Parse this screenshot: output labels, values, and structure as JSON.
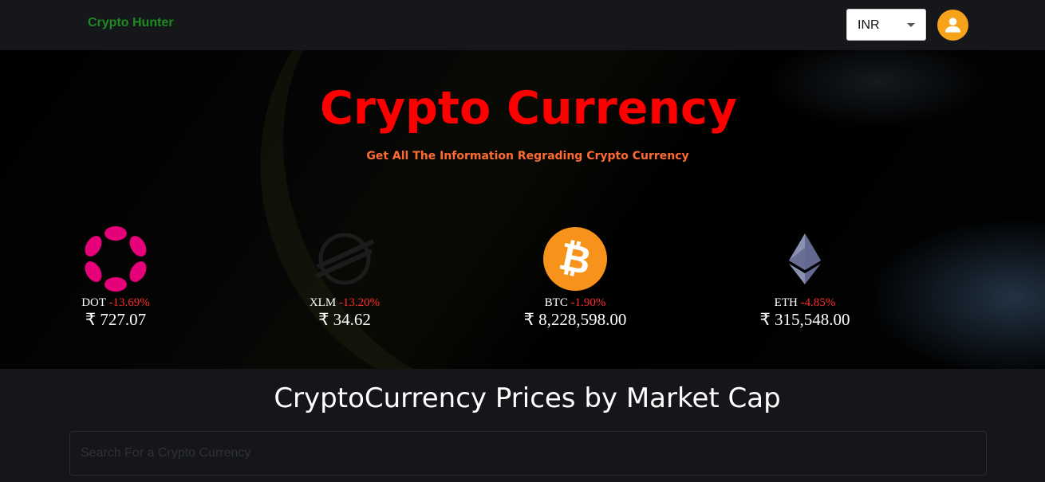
{
  "header": {
    "brand": "Crypto Hunter",
    "currency": "INR"
  },
  "banner": {
    "title": "Crypto Currency",
    "subtitle": "Get All The Information Regrading Crypto Currency"
  },
  "coins": [
    {
      "symbol": "DOT",
      "change": "-13.69%",
      "price": "₹ 727.07",
      "icon": "polkadot-icon",
      "color": "#e6007a"
    },
    {
      "symbol": "XLM",
      "change": "-13.20%",
      "price": "₹ 34.62",
      "icon": "stellar-icon",
      "color": "#1a1a1a"
    },
    {
      "symbol": "BTC",
      "change": "-1.90%",
      "price": "₹ 8,228,598.00",
      "icon": "bitcoin-icon",
      "color": "#f7931a"
    },
    {
      "symbol": "ETH",
      "change": "-4.85%",
      "price": "₹ 315,548.00",
      "icon": "ethereum-icon",
      "color": "#8a92b2"
    }
  ],
  "main": {
    "title": "CryptoCurrency Prices by Market Cap",
    "search_placeholder": "Search For a Crypto Currency"
  },
  "colors": {
    "brand": "#1f8a1f",
    "hero_title": "#ff0000",
    "hero_subtitle": "#ff6a33",
    "negative_change": "#ff2a2a",
    "avatar": "#f6a21a"
  }
}
